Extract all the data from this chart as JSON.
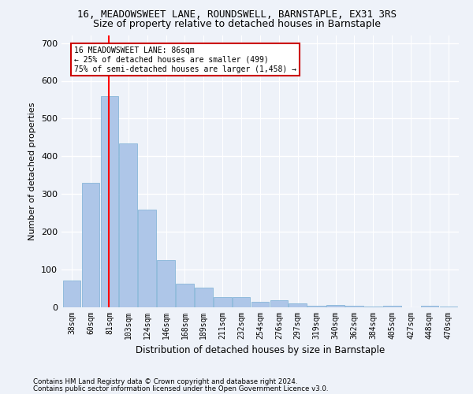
{
  "title": "16, MEADOWSWEET LANE, ROUNDSWELL, BARNSTAPLE, EX31 3RS",
  "subtitle": "Size of property relative to detached houses in Barnstaple",
  "xlabel": "Distribution of detached houses by size in Barnstaple",
  "ylabel": "Number of detached properties",
  "categories": [
    "38sqm",
    "60sqm",
    "81sqm",
    "103sqm",
    "124sqm",
    "146sqm",
    "168sqm",
    "189sqm",
    "211sqm",
    "232sqm",
    "254sqm",
    "276sqm",
    "297sqm",
    "319sqm",
    "340sqm",
    "362sqm",
    "384sqm",
    "405sqm",
    "427sqm",
    "448sqm",
    "470sqm"
  ],
  "values": [
    70,
    330,
    560,
    435,
    258,
    125,
    63,
    52,
    28,
    28,
    15,
    18,
    11,
    5,
    7,
    5,
    3,
    4,
    1,
    4,
    3
  ],
  "bar_color": "#aec6e8",
  "bar_edge_color": "#7aafd4",
  "red_line_x": 1.975,
  "annotation_title": "16 MEADOWSWEET LANE: 86sqm",
  "annotation_line1": "← 25% of detached houses are smaller (499)",
  "annotation_line2": "75% of semi-detached houses are larger (1,458) →",
  "annotation_box_color": "#ffffff",
  "annotation_box_edge_color": "#cc0000",
  "ylim": [
    0,
    720
  ],
  "yticks": [
    0,
    100,
    200,
    300,
    400,
    500,
    600,
    700
  ],
  "footer1": "Contains HM Land Registry data © Crown copyright and database right 2024.",
  "footer2": "Contains public sector information licensed under the Open Government Licence v3.0.",
  "background_color": "#eef2f9",
  "grid_color": "#ffffff",
  "title_fontsize": 9,
  "subtitle_fontsize": 9,
  "tick_fontsize": 7,
  "ylabel_fontsize": 8,
  "xlabel_fontsize": 8.5
}
